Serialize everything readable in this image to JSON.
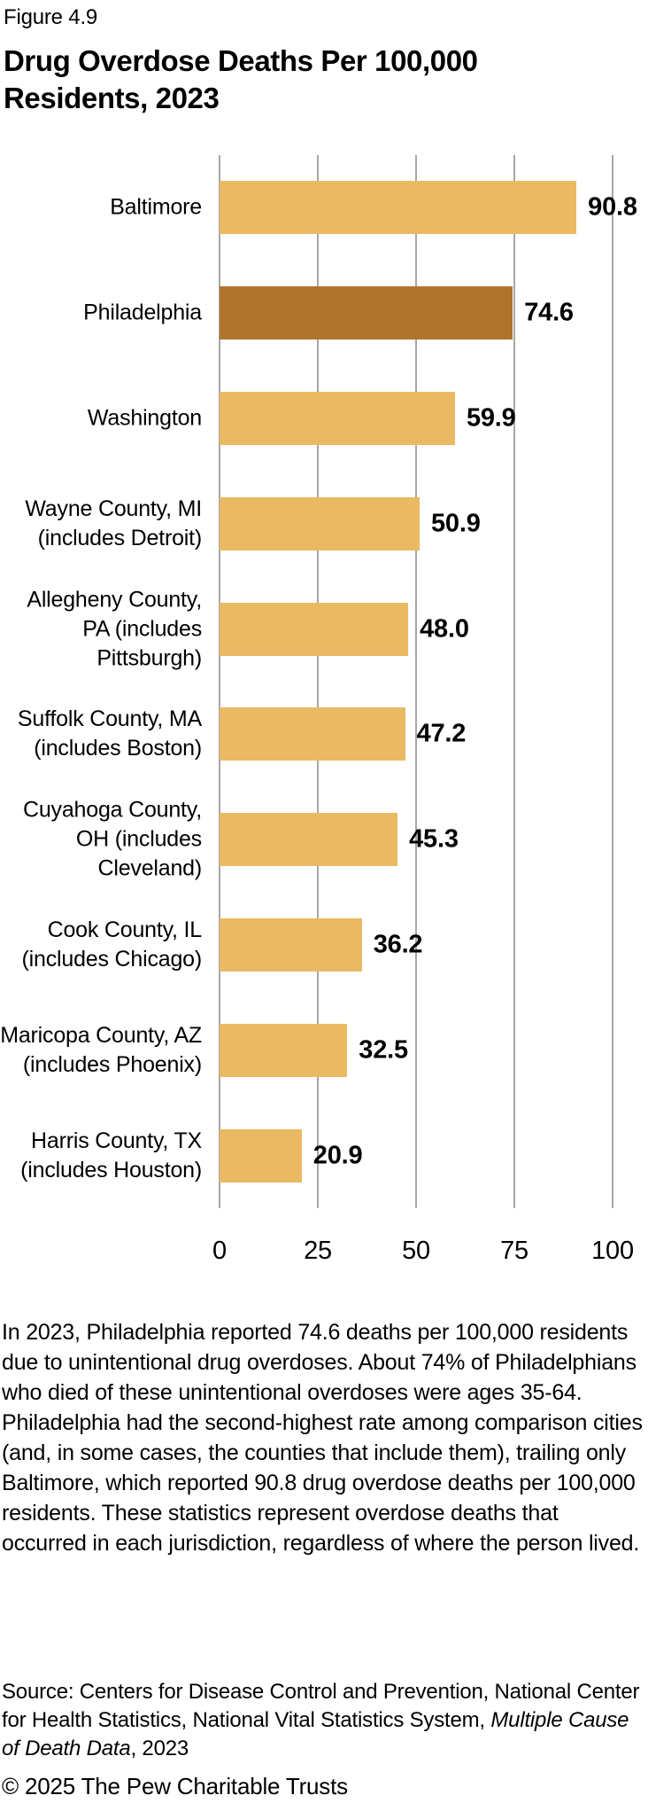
{
  "figure": {
    "label": "Figure 4.9",
    "title": "Drug Overdose Deaths Per 100,000 Residents, 2023"
  },
  "chart_data": {
    "type": "bar",
    "orientation": "horizontal",
    "title": "Drug Overdose Deaths Per 100,000 Residents, 2023",
    "categories": [
      "Baltimore",
      "Philadelphia",
      "Washington",
      "Wayne County, MI (includes Detroit)",
      "Allegheny County, PA (includes Pittsburgh)",
      "Suffolk County, MA (includes Boston)",
      "Cuyahoga County, OH (includes Cleveland)",
      "Cook County, IL (includes Chicago)",
      "Maricopa County, AZ (includes Phoenix)",
      "Harris County, TX (includes Houston)"
    ],
    "values": [
      90.8,
      74.6,
      59.9,
      50.9,
      48.0,
      47.2,
      45.3,
      36.2,
      32.5,
      20.9
    ],
    "value_labels": [
      "90.8",
      "74.6",
      "59.9",
      "50.9",
      "48.0",
      "47.2",
      "45.3",
      "36.2",
      "32.5",
      "20.9"
    ],
    "highlighted_category": "Philadelphia",
    "x_ticks": [
      "0",
      "25",
      "50",
      "75",
      "100"
    ],
    "x_tick_values": [
      0,
      25,
      50,
      75,
      100
    ],
    "xlim": [
      0,
      100
    ],
    "grid": true,
    "legend": false,
    "colors": {
      "bar": "#EAB963",
      "highlight": "#B0742C",
      "gridline": "#A7A7A7",
      "text": "#000000"
    }
  },
  "description": "In 2023, Philadelphia reported 74.6 deaths per 100,000 residents due to unintentional drug overdoses. About 74% of Philadelphians who died of these unintentional overdoses were ages 35-64. Philadelphia had the second-highest rate among comparison cities (and, in some cases, the counties that include them), trailing only Baltimore, which reported 90.8 drug overdose deaths per 100,000 residents. These statistics represent overdose deaths that occurred in each jurisdiction, regardless of where the person lived.",
  "source": {
    "prefix": "Source: Centers for Disease Control and Prevention, National Center for Health Statistics, National Vital Statistics System, ",
    "italic": "Multiple Cause of Death Data",
    "suffix": ", 2023"
  },
  "footer": {
    "copyright": "© 2025 The Pew Charitable Trusts"
  }
}
